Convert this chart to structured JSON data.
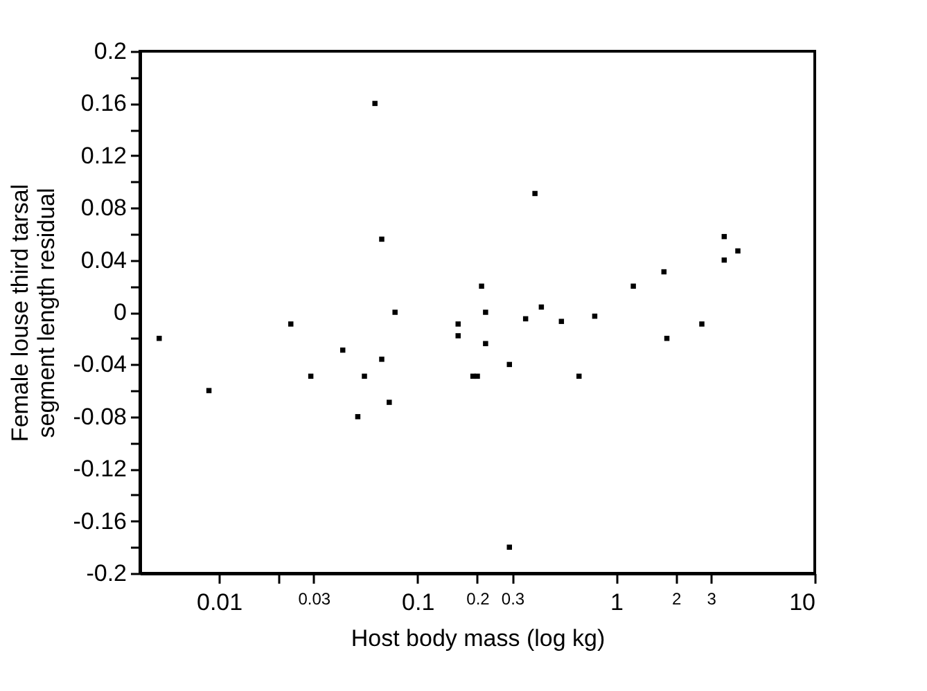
{
  "chart_data": {
    "type": "scatter",
    "xlabel": "Host body mass (log kg)",
    "ylabel": "Female louse third tarsal segment length residual",
    "log": "x",
    "marker": "square",
    "grid": false,
    "xlim": [
      0.004,
      10
    ],
    "xticks": [
      0.01,
      {
        "value": 0.02,
        "label": null
      },
      0.03,
      0.1,
      0.2,
      0.3,
      1,
      2,
      3,
      10
    ],
    "ylim": [
      -0.2,
      0.2
    ],
    "yticks": [
      -0.2,
      {
        "value": -0.18,
        "label": null
      },
      -0.16,
      {
        "value": -0.14,
        "label": null
      },
      -0.12,
      {
        "value": -0.1,
        "label": null
      },
      -0.08,
      {
        "value": -0.06,
        "label": null
      },
      -0.04,
      {
        "value": -0.02,
        "label": null
      },
      0,
      {
        "value": 0.02,
        "label": null
      },
      0.04,
      {
        "value": 0.06,
        "label": null
      },
      0.08,
      {
        "value": 0.1,
        "label": null
      },
      0.12,
      {
        "value": 0.14,
        "label": null
      },
      0.16,
      {
        "value": 0.18,
        "label": null
      },
      0.2
    ],
    "series": [
      {
        "color": "#000000",
        "x": [
          0.005,
          0.0089,
          0.023,
          0.029,
          0.042,
          0.054,
          0.05,
          0.061,
          0.066,
          0.066,
          0.072,
          0.077,
          0.16,
          0.16,
          0.19,
          0.2,
          0.21,
          0.22,
          0.22,
          0.29,
          0.29,
          0.39,
          0.35,
          0.42,
          0.53,
          0.65,
          0.78,
          1.22,
          1.74,
          1.8,
          2.7,
          3.5,
          3.5,
          4.1
        ],
        "values": [
          -0.02,
          -0.06,
          -0.009,
          -0.049,
          -0.029,
          -0.049,
          -0.08,
          0.16,
          0.056,
          -0.036,
          -0.069,
          0.0,
          -0.009,
          -0.018,
          -0.049,
          -0.049,
          0.02,
          0.0,
          -0.024,
          -0.04,
          -0.18,
          0.091,
          -0.005,
          0.004,
          -0.007,
          -0.049,
          -0.003,
          0.02,
          0.031,
          -0.02,
          -0.009,
          0.058,
          0.04,
          0.047
        ]
      }
    ]
  }
}
